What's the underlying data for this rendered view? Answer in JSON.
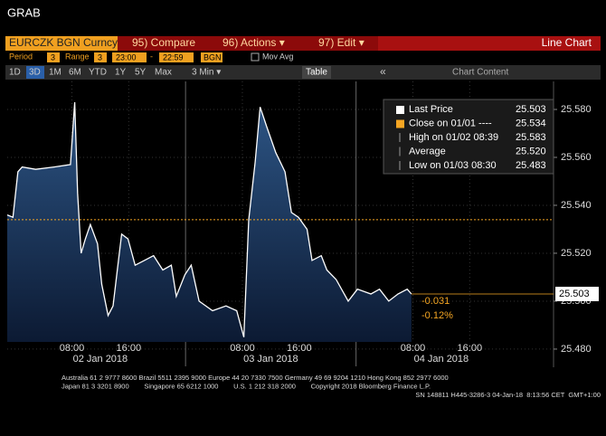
{
  "header": {
    "title": "GRAB"
  },
  "toolbar": {
    "security": "EURCZK BGN Curncy",
    "buttons": [
      "95) Compare",
      "96) Actions ▾",
      "97) Edit ▾"
    ],
    "chart_type": "Line Chart"
  },
  "settings": {
    "period_label": "Period",
    "period": "3",
    "range_label": "Range",
    "range": "3",
    "start": "23:00",
    "dash": "-",
    "end": "22:59",
    "source": "BGN",
    "mov_avg": "Mov Avg"
  },
  "tabs": {
    "ranges": [
      "1D",
      "3D",
      "1M",
      "6M",
      "YTD",
      "1Y",
      "5Y",
      "Max"
    ],
    "interval": "3 Min ▾",
    "table": "Table",
    "collapse": "«",
    "content": "Chart Content"
  },
  "chart_data": {
    "type": "line",
    "color": "#ffffff",
    "close_color": "#f5a623",
    "x": [
      -1.1,
      -0.3,
      0.4,
      1.0,
      2.9,
      5.5,
      7.8,
      8.4,
      8.8,
      9.3,
      9.9,
      10.6,
      11.6,
      12.2,
      13.1,
      13.8,
      14.4,
      15.0,
      15.9,
      16.9,
      18.2,
      19.5,
      20.8,
      22.0,
      22.7,
      23.9,
      24.8,
      25.9,
      27.8,
      29.7,
      31.2,
      32.2,
      32.9,
      33.8,
      34.5,
      35.4,
      36.7,
      38.0,
      38.9,
      39.9,
      41.1,
      41.8,
      43.1,
      43.9,
      45.2,
      46.9,
      48.2,
      50.1,
      51.3,
      52.6,
      53.9,
      55.2,
      55.8
    ],
    "values": [
      25.536,
      25.535,
      25.554,
      25.556,
      25.555,
      25.556,
      25.557,
      25.583,
      25.545,
      25.52,
      25.526,
      25.532,
      25.524,
      25.507,
      25.494,
      25.498,
      25.513,
      25.528,
      25.526,
      25.515,
      25.517,
      25.519,
      25.513,
      25.515,
      25.502,
      25.511,
      25.515,
      25.5,
      25.496,
      25.498,
      25.496,
      25.485,
      25.534,
      25.558,
      25.581,
      25.573,
      25.562,
      25.554,
      25.537,
      25.535,
      25.53,
      25.517,
      25.519,
      25.513,
      25.509,
      25.5,
      25.505,
      25.503,
      25.505,
      25.5,
      25.503,
      25.505,
      25.503
    ],
    "close": 25.534,
    "xlim": [
      -1.1,
      75.8
    ],
    "xticks": [
      {
        "value": 8,
        "label": "08:00"
      },
      {
        "value": 16,
        "label": "16:00"
      },
      {
        "value": 32,
        "label": "08:00"
      },
      {
        "value": 40,
        "label": "16:00"
      },
      {
        "value": 56,
        "label": "08:00"
      },
      {
        "value": 64,
        "label": "16:00"
      }
    ],
    "date_labels": [
      {
        "value": 12,
        "label": "02 Jan 2018"
      },
      {
        "value": 36,
        "label": "03 Jan 2018"
      },
      {
        "value": 60,
        "label": "04 Jan 2018"
      }
    ],
    "ylim": [
      25.4728,
      25.5917
    ],
    "yticks": [
      {
        "value": 25.48,
        "label": "25.480"
      },
      {
        "value": 25.5,
        "label": "25.500"
      },
      {
        "value": 25.52,
        "label": "25.520"
      },
      {
        "value": 25.54,
        "label": "25.540"
      },
      {
        "value": 25.56,
        "label": "25.560"
      },
      {
        "value": 25.58,
        "label": "25.580"
      }
    ],
    "grid": true,
    "stats": [
      {
        "label": "Last Price",
        "value": "25.503"
      },
      {
        "label": "Close on 01/01 ----",
        "value": "25.534"
      },
      {
        "label": "High on 01/02 08:39",
        "value": "25.583"
      },
      {
        "label": "Average",
        "value": "25.520"
      },
      {
        "label": "Low on 01/03 08:30",
        "value": "25.483"
      }
    ],
    "change": "-0.031",
    "change_pct": "-0.12%"
  },
  "footer": {
    "lines": [
      "Australia 61 2 9777 8600 Brazil 5511 2395 9000 Europe 44 20 7330 7500 Germany 49 69 9204 1210 Hong Kong 852 2977 6000",
      "Japan 81 3 3201 8900        Singapore 65 6212 1000        U.S. 1 212 318 2000        Copyright 2018 Bloomberg Finance L.P.",
      "SN 148811 H445-3286-3 04-Jan-18  8:13:56 CET  GMT+1:00"
    ]
  }
}
